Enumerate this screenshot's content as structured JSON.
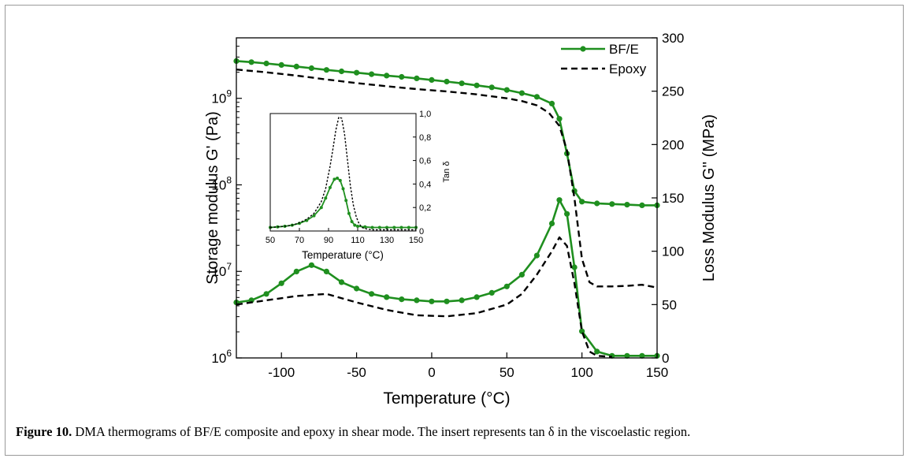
{
  "caption": {
    "label": "Figure 10.",
    "text": "DMA thermograms of BF/E composite and epoxy in shear mode. The insert represents tan δ in the viscoelastic region."
  },
  "chart_data": [
    {
      "type": "line",
      "xlabel": "Temperature (°C)",
      "ylabel_left": "Storage modulus G' (Pa)",
      "ylabel_right": "Loss Modulus G'' (MPa)",
      "xlim": [
        -130,
        150
      ],
      "ylim_left": [
        1000000.0,
        5000000000.0
      ],
      "yscale_left": "log",
      "ylim_right": [
        0,
        300
      ],
      "xticks": [
        "-100",
        "-50",
        "0",
        "50",
        "100",
        "150"
      ],
      "yticks_left": [
        "10^6",
        "10^7",
        "10^8",
        "10^9"
      ],
      "yticks_right": [
        "0",
        "50",
        "100",
        "150",
        "200",
        "250",
        "300"
      ],
      "legend": {
        "position": "top-right",
        "entries": [
          "BF/E",
          "Epoxy"
        ]
      },
      "colors": {
        "bfe": "#1f8f1f",
        "epoxy": "#000000"
      },
      "series": [
        {
          "name": "BF/E",
          "axis": "left",
          "style": "solid-markers",
          "x": [
            -130,
            -120,
            -110,
            -100,
            -90,
            -80,
            -70,
            -60,
            -50,
            -40,
            -30,
            -20,
            -10,
            0,
            10,
            20,
            30,
            40,
            50,
            60,
            70,
            80,
            85,
            90,
            95,
            100,
            110,
            120,
            130,
            140,
            150
          ],
          "y": [
            2700000000.0,
            2620000000.0,
            2530000000.0,
            2430000000.0,
            2330000000.0,
            2230000000.0,
            2130000000.0,
            2050000000.0,
            1980000000.0,
            1900000000.0,
            1830000000.0,
            1770000000.0,
            1700000000.0,
            1630000000.0,
            1560000000.0,
            1490000000.0,
            1410000000.0,
            1340000000.0,
            1250000000.0,
            1150000000.0,
            1040000000.0,
            870000000.0,
            580000000.0,
            230000000.0,
            85000000.0,
            64000000.0,
            61000000.0,
            60000000.0,
            59000000.0,
            58000000.0,
            58000000.0
          ]
        },
        {
          "name": "Epoxy",
          "axis": "left",
          "style": "dashed",
          "x": [
            -130,
            -110,
            -90,
            -70,
            -50,
            -30,
            -10,
            10,
            30,
            50,
            60,
            70,
            78,
            85,
            90,
            95,
            100,
            105,
            110,
            120,
            130,
            140,
            150
          ],
          "y": [
            2150000000.0,
            2000000000.0,
            1830000000.0,
            1650000000.0,
            1500000000.0,
            1380000000.0,
            1280000000.0,
            1200000000.0,
            1110000000.0,
            1000000000.0,
            930000000.0,
            830000000.0,
            680000000.0,
            480000000.0,
            250000000.0,
            70000000.0,
            14000000.0,
            7500000.0,
            6700000.0,
            6700000.0,
            6800000.0,
            7000000.0,
            6500000.0
          ]
        },
        {
          "name": "BF/E",
          "axis": "right",
          "style": "solid-markers",
          "x": [
            -130,
            -120,
            -110,
            -100,
            -90,
            -80,
            -70,
            -60,
            -50,
            -40,
            -30,
            -20,
            -10,
            0,
            10,
            20,
            30,
            40,
            50,
            60,
            70,
            80,
            85,
            90,
            95,
            100,
            110,
            120,
            130,
            140,
            150
          ],
          "y": [
            52,
            54,
            60,
            70,
            81,
            87,
            81,
            71,
            65,
            60,
            57,
            55,
            54,
            53,
            53,
            54,
            57,
            61,
            67,
            78,
            96,
            126,
            148,
            135,
            85,
            25,
            6,
            2,
            2,
            2,
            2
          ]
        },
        {
          "name": "Epoxy",
          "axis": "right",
          "style": "dashed",
          "x": [
            -130,
            -110,
            -90,
            -70,
            -50,
            -30,
            -10,
            10,
            30,
            50,
            60,
            70,
            80,
            85,
            90,
            95,
            100,
            105,
            110,
            120
          ],
          "y": [
            50,
            54,
            58,
            60,
            52,
            45,
            40,
            39,
            42,
            50,
            60,
            78,
            100,
            113,
            105,
            70,
            25,
            6,
            2,
            1
          ]
        }
      ]
    },
    {
      "type": "line",
      "xlabel": "Temperature (°C)",
      "ylabel": "Tan δ",
      "xlim": [
        50,
        150
      ],
      "ylim": [
        0,
        1.0
      ],
      "xticks": [
        "50",
        "70",
        "90",
        "110",
        "130",
        "150"
      ],
      "yticks": [
        "0",
        "0,2",
        "0,4",
        "0,6",
        "0,8",
        "1,0"
      ],
      "series": [
        {
          "name": "BF/E",
          "style": "solid-markers",
          "x": [
            50,
            55,
            60,
            65,
            70,
            75,
            80,
            85,
            88,
            91,
            94,
            96,
            98,
            100,
            102,
            104,
            106,
            108,
            110,
            115,
            120,
            125,
            130,
            135,
            140,
            145,
            150
          ],
          "y": [
            0.03,
            0.035,
            0.04,
            0.05,
            0.065,
            0.09,
            0.13,
            0.2,
            0.28,
            0.37,
            0.44,
            0.45,
            0.43,
            0.36,
            0.26,
            0.15,
            0.08,
            0.05,
            0.04,
            0.035,
            0.03,
            0.03,
            0.03,
            0.03,
            0.03,
            0.03,
            0.03
          ]
        },
        {
          "name": "Epoxy",
          "style": "dotted",
          "x": [
            50,
            55,
            60,
            65,
            70,
            75,
            80,
            85,
            88,
            91,
            93,
            95,
            97,
            99,
            101,
            103,
            105,
            107,
            109,
            111,
            113,
            115,
            120,
            130,
            150
          ],
          "y": [
            0.03,
            0.035,
            0.04,
            0.05,
            0.07,
            0.1,
            0.15,
            0.25,
            0.36,
            0.55,
            0.7,
            0.86,
            0.97,
            0.96,
            0.82,
            0.6,
            0.38,
            0.22,
            0.12,
            0.06,
            0.03,
            0.02,
            0.01,
            0.01,
            0.01
          ]
        }
      ]
    }
  ]
}
